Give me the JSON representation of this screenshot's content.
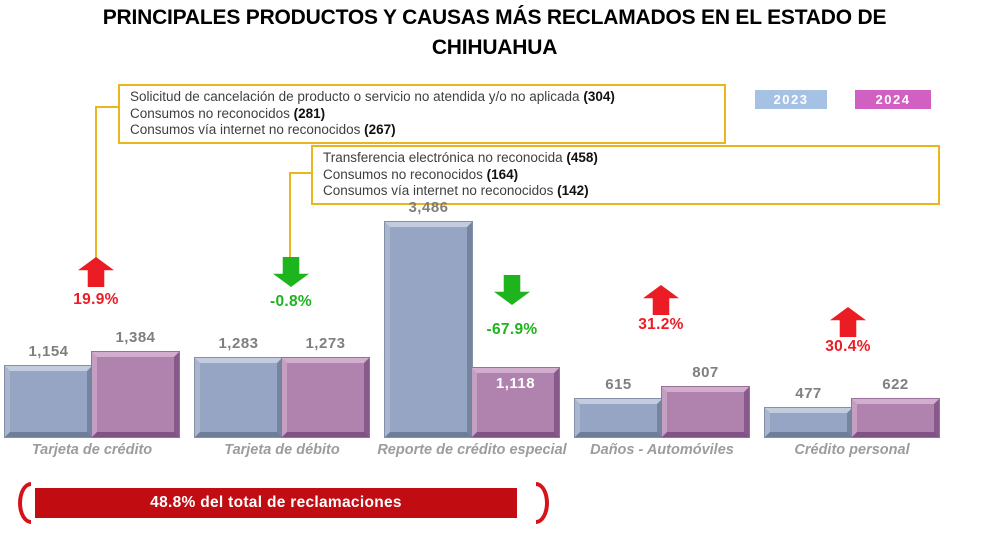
{
  "title": "PRINCIPALES PRODUCTOS Y CAUSAS MÁS RECLAMADOS EN EL ESTADO DE CHIHUAHUA",
  "legend": {
    "items": [
      {
        "label": "2023",
        "color": "#a5c2e5"
      },
      {
        "label": "2024",
        "color": "#d25fc2"
      }
    ]
  },
  "callouts": [
    {
      "lines": [
        {
          "text": "Solicitud de cancelación de producto o servicio no atendida y/o no aplicada",
          "count": "(304)"
        },
        {
          "text": "Consumos no reconocidos",
          "count": "(281)"
        },
        {
          "text": "Consumos vía internet no reconocidos",
          "count": "(267)"
        }
      ]
    },
    {
      "lines": [
        {
          "text": "Transferencia electrónica no reconocida",
          "count": "(458)"
        },
        {
          "text": "Consumos no reconocidos",
          "count": "(164)"
        },
        {
          "text": "Consumos vía internet no reconocidos",
          "count": "(142)"
        }
      ]
    }
  ],
  "chart_data": {
    "type": "bar",
    "title": "PRINCIPALES PRODUCTOS Y CAUSAS MÁS RECLAMADOS EN EL ESTADO DE CHIHUAHUA",
    "categories": [
      "Tarjeta de crédito",
      "Tarjeta de débito",
      "Reporte de crédito especial",
      "Daños - Automóviles",
      "Crédito personal"
    ],
    "series": [
      {
        "name": "2023",
        "color": "#95a5c3",
        "values": [
          1154,
          1283,
          3486,
          615,
          477
        ],
        "labels": [
          "1,154",
          "1,283",
          "3,486",
          "615",
          "477"
        ],
        "label_inside": [
          false,
          false,
          false,
          false,
          false
        ]
      },
      {
        "name": "2024",
        "color": "#b083ae",
        "values": [
          1384,
          1273,
          1118,
          807,
          622
        ],
        "labels": [
          "1,384",
          "1,273",
          "1,118",
          "807",
          "622"
        ],
        "label_inside": [
          false,
          false,
          true,
          false,
          false
        ]
      }
    ],
    "changes": [
      {
        "label": "19.9%",
        "direction": "up"
      },
      {
        "label": "-0.8%",
        "direction": "down"
      },
      {
        "label": "-67.9%",
        "direction": "down"
      },
      {
        "label": "31.2%",
        "direction": "up"
      },
      {
        "label": "30.4%",
        "direction": "up"
      }
    ],
    "colors": {
      "up": "#ec1c24",
      "down": "#1db41d"
    },
    "value_axis_max": 3486,
    "grid": false,
    "legend_position": "top-right"
  },
  "footer": {
    "label": "48.8% del total de reclamaciones",
    "color": "#c10c12"
  }
}
